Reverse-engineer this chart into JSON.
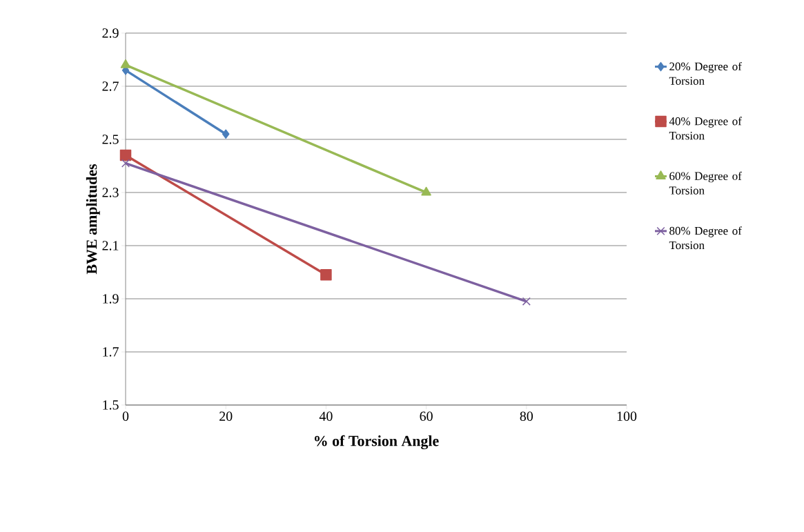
{
  "chart_data": {
    "type": "line",
    "xlabel": "% of Torsion Angle",
    "ylabel": "BWE amplitudes",
    "xlim": [
      0,
      100
    ],
    "ylim": [
      1.5,
      2.9
    ],
    "xticks": [
      0,
      20,
      40,
      60,
      80,
      100
    ],
    "yticks": [
      1.5,
      1.7,
      1.9,
      2.1,
      2.3,
      2.5,
      2.7,
      2.9
    ],
    "grid": "y",
    "legend": "right",
    "line_style": "solid",
    "series": [
      {
        "name": "20% Degree of Torsion",
        "color": "#4a7ebb",
        "marker": "diamond",
        "x": [
          0,
          20
        ],
        "values": [
          2.76,
          2.52
        ]
      },
      {
        "name": "40% Degree of Torsion",
        "color": "#be4b48",
        "marker": "square",
        "x": [
          0,
          40
        ],
        "values": [
          2.44,
          1.99
        ]
      },
      {
        "name": "60% Degree of Torsion",
        "color": "#98b954",
        "marker": "triangle",
        "x": [
          0,
          60
        ],
        "values": [
          2.78,
          2.3
        ]
      },
      {
        "name": "80% Degree of Torsion",
        "color": "#7d60a0",
        "marker": "cross",
        "x": [
          0,
          80
        ],
        "values": [
          2.41,
          1.89
        ]
      }
    ]
  }
}
